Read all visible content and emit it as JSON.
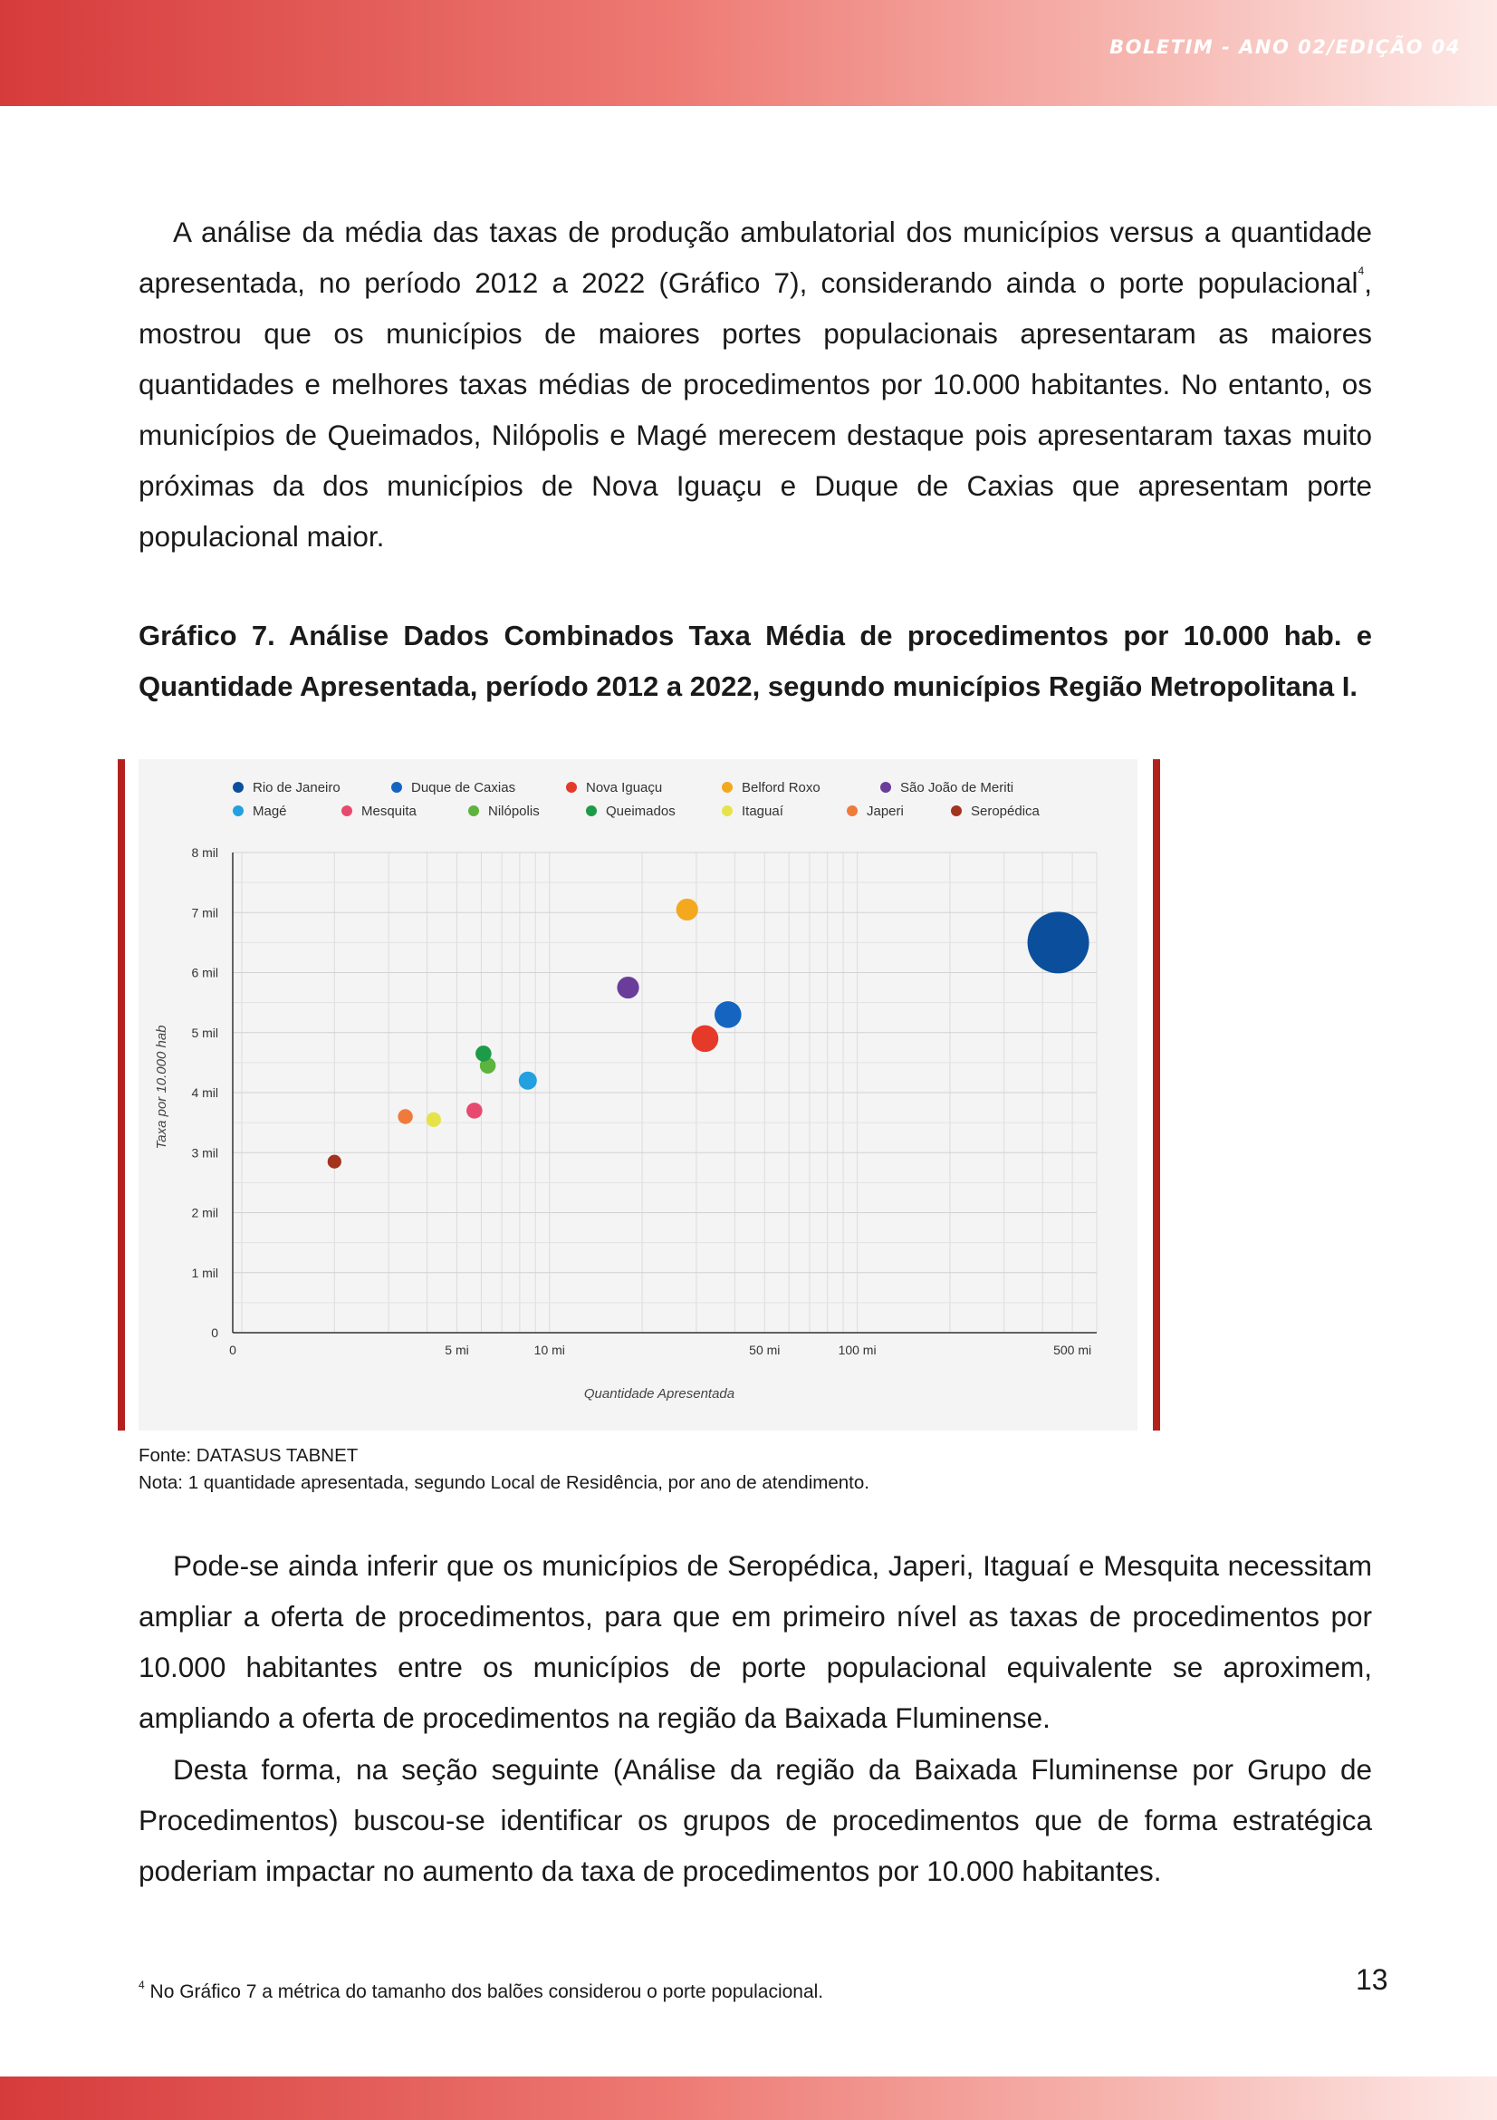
{
  "header": {
    "edition": "BOLETIM - ANO 02/EDIÇÃO 04"
  },
  "body": {
    "para1_a": "A análise da média das taxas de produção ambulatorial dos municípios versus a quantidade apresentada, no período 2012 a 2022 (Gráfico 7), considerando ainda o porte populacional",
    "para1_sup": "4",
    "para1_b": ", mostrou que os municípios de maiores portes populacionais apresentaram as maiores quantidades e melhores taxas médias de procedimentos por 10.000 habitantes. No entanto, os municípios de Queimados, Nilópolis e Magé merecem destaque pois apresentaram taxas muito próximas da dos municípios de Nova Iguaçu e Duque de Caxias que apresentam porte populacional maior.",
    "caption": "Gráfico 7. Análise Dados Combinados Taxa Média de procedimentos por 10.000 hab. e Quantidade Apresentada, período 2012 a 2022, segundo municípios Região Metropolitana I.",
    "source": "Fonte: DATASUS TABNET",
    "note": "Nota: 1 quantidade apresentada, segundo Local de Residência, por ano de atendimento.",
    "para2": "Pode-se ainda inferir que os municípios de Seropédica, Japeri, Itaguaí e Mesquita necessitam ampliar a oferta de procedimentos, para que em primeiro nível as taxas de procedimentos por 10.000 habitantes entre os municípios de porte populacional equivalente se aproximem, ampliando a oferta de procedimentos na região da Baixada Fluminense.",
    "para3": "Desta forma, na seção seguinte (Análise da região da Baixada Fluminense por Grupo de Procedimentos) buscou-se identificar os grupos de procedimentos que de forma estratégica poderiam impactar no aumento da taxa de procedimentos por 10.000 habitantes."
  },
  "footnote": {
    "marker": "4",
    "text": "No Gráfico 7 a métrica do tamanho dos balões considerou o porte populacional."
  },
  "page_number": "13",
  "chart_data": {
    "type": "scatter",
    "xlabel": "Quantidade Apresentada",
    "ylabel": "Taxa por 10.000 hab",
    "x_scale": "log",
    "x_ticks": [
      {
        "value": 0,
        "label": "0"
      },
      {
        "value": 5000,
        "label": "5 mi"
      },
      {
        "value": 10000,
        "label": "10 mi"
      },
      {
        "value": 50000,
        "label": "50 mi"
      },
      {
        "value": 100000,
        "label": "100 mi"
      },
      {
        "value": 500000,
        "label": "500 mi"
      }
    ],
    "y_ticks": [
      {
        "value": 0,
        "label": "0"
      },
      {
        "value": 1000,
        "label": "1 mil"
      },
      {
        "value": 2000,
        "label": "2 mil"
      },
      {
        "value": 3000,
        "label": "3 mil"
      },
      {
        "value": 4000,
        "label": "4 mil"
      },
      {
        "value": 5000,
        "label": "5 mil"
      },
      {
        "value": 6000,
        "label": "6 mil"
      },
      {
        "value": 7000,
        "label": "7 mil"
      },
      {
        "value": 8000,
        "label": "8 mil"
      }
    ],
    "ylim": [
      0,
      8000
    ],
    "grid": true,
    "legend_position": "top",
    "series": [
      {
        "name": "Rio de Janeiro",
        "color": "#0b4f9c",
        "x": 450000,
        "y": 6500,
        "size": 1.0
      },
      {
        "name": "Duque de Caxias",
        "color": "#1565c0",
        "x": 38000,
        "y": 5300,
        "size": 0.36
      },
      {
        "name": "Nova Iguaçu",
        "color": "#e53a2a",
        "x": 32000,
        "y": 4900,
        "size": 0.36
      },
      {
        "name": "Belford Roxo",
        "color": "#f4a81d",
        "x": 28000,
        "y": 7050,
        "size": 0.27
      },
      {
        "name": "São João de Meriti",
        "color": "#6a3d9a",
        "x": 18000,
        "y": 5750,
        "size": 0.27
      },
      {
        "name": "Magé",
        "color": "#22a0e0",
        "x": 8500,
        "y": 4200,
        "size": 0.2
      },
      {
        "name": "Mesquita",
        "color": "#e84a6f",
        "x": 5700,
        "y": 3700,
        "size": 0.16
      },
      {
        "name": "Nilópolis",
        "color": "#5cb33d",
        "x": 6300,
        "y": 4450,
        "size": 0.16
      },
      {
        "name": "Queimados",
        "color": "#1d9b48",
        "x": 6100,
        "y": 4650,
        "size": 0.16
      },
      {
        "name": "Itaguaí",
        "color": "#e6e34a",
        "x": 4200,
        "y": 3550,
        "size": 0.14
      },
      {
        "name": "Japeri",
        "color": "#ef7a3a",
        "x": 3400,
        "y": 3600,
        "size": 0.14
      },
      {
        "name": "Seropédica",
        "color": "#a3321e",
        "x": 2000,
        "y": 2850,
        "size": 0.12
      }
    ]
  }
}
